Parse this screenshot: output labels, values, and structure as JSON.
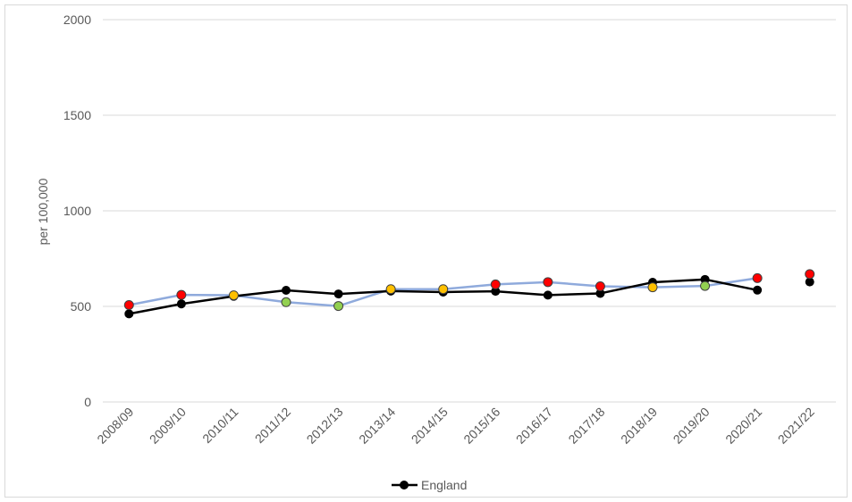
{
  "chart_data": {
    "type": "line",
    "title": "",
    "xlabel": "",
    "ylabel": "per 100,000",
    "ylim": [
      0,
      2000
    ],
    "yticks": [
      0,
      500,
      1000,
      1500,
      2000
    ],
    "grid": true,
    "legend_position": "bottom",
    "categories": [
      "2008/09",
      "2009/10",
      "2010/11",
      "2011/12",
      "2012/13",
      "2013/14",
      "2014/15",
      "2015/16",
      "2016/17",
      "2017/18",
      "2018/19",
      "2019/20",
      "2020/21",
      "2021/22"
    ],
    "series": [
      {
        "name": "",
        "role": "local area (unlabelled)",
        "color": "#8faadc",
        "values": [
          507,
          560,
          558,
          522,
          502,
          590,
          590,
          615,
          627,
          605,
          600,
          607,
          648,
          669
        ],
        "marker_colors": [
          "#ff0000",
          "#ff0000",
          "#ffc000",
          "#92d050",
          "#92d050",
          "#ffc000",
          "#ffc000",
          "#ff0000",
          "#ff0000",
          "#ff0000",
          "#ffc000",
          "#92d050",
          "#ff0000",
          "#ff0000"
        ]
      },
      {
        "name": "England",
        "color": "#000000",
        "values": [
          461,
          513,
          553,
          584,
          565,
          580,
          575,
          579,
          559,
          568,
          626,
          641,
          585,
          628
        ]
      }
    ]
  }
}
